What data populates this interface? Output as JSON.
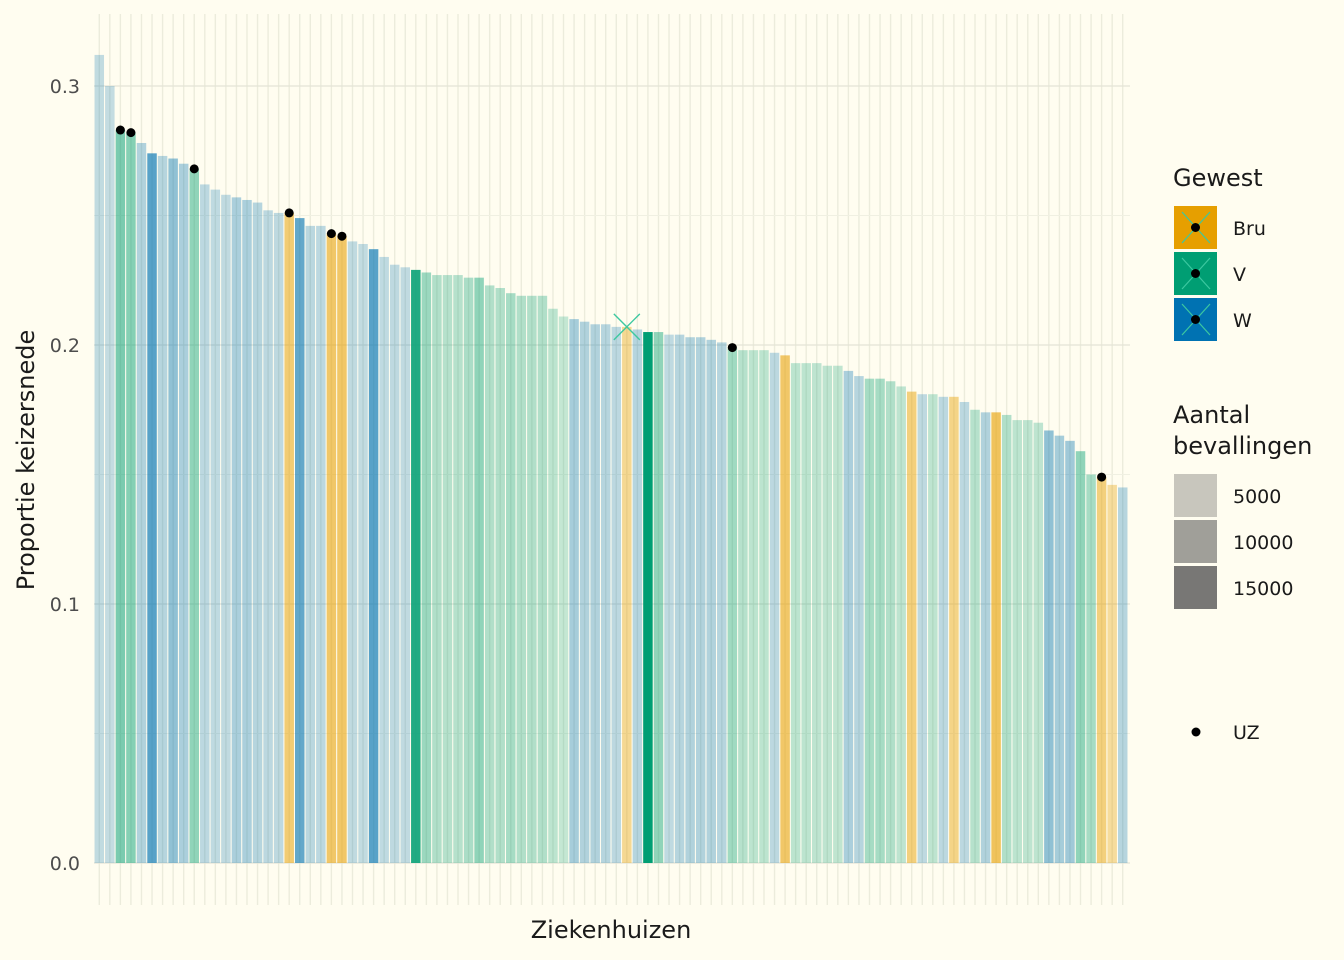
{
  "chart_data": {
    "type": "bar",
    "xlabel": "Ziekenhuizen",
    "ylabel": "Proportie keizersnede",
    "ylim": [
      0,
      0.32
    ],
    "yticks": [
      "0.0",
      "0.1",
      "0.2",
      "0.3"
    ],
    "ytick_values": [
      0,
      0.1,
      0.2,
      0.3
    ],
    "grid": true,
    "colors": {
      "Bru": "#E69F00",
      "V": "#009E73",
      "W": "#0072B2"
    },
    "legend": {
      "position": "right",
      "region": {
        "title": "Gewest",
        "items": [
          {
            "key": "Bru",
            "label": "Bru",
            "color": "#E69F00"
          },
          {
            "key": "V",
            "label": "V",
            "color": "#009E73"
          },
          {
            "key": "W",
            "label": "W",
            "color": "#0072B2"
          }
        ]
      },
      "size": {
        "title_line1": "Aantal",
        "title_line2": "bevallingen",
        "items": [
          {
            "label": "5000",
            "value": 5000
          },
          {
            "label": "10000",
            "value": 10000
          },
          {
            "label": "15000",
            "value": 15000
          }
        ]
      },
      "uz": {
        "label": "UZ"
      }
    },
    "highlight_index": 50,
    "hospitals": [
      {
        "value": 0.312,
        "region": "W",
        "births": 500,
        "uz": false
      },
      {
        "value": 0.3,
        "region": "W",
        "births": 300,
        "uz": false
      },
      {
        "value": 0.283,
        "region": "V",
        "births": 7000,
        "uz": true
      },
      {
        "value": 0.282,
        "region": "V",
        "births": 6000,
        "uz": true
      },
      {
        "value": 0.278,
        "region": "W",
        "births": 2000,
        "uz": false
      },
      {
        "value": 0.274,
        "region": "W",
        "births": 10000,
        "uz": false
      },
      {
        "value": 0.273,
        "region": "W",
        "births": 1500,
        "uz": false
      },
      {
        "value": 0.272,
        "region": "W",
        "births": 5000,
        "uz": false
      },
      {
        "value": 0.27,
        "region": "W",
        "births": 2500,
        "uz": false
      },
      {
        "value": 0.268,
        "region": "V",
        "births": 5000,
        "uz": true
      },
      {
        "value": 0.262,
        "region": "W",
        "births": 1000,
        "uz": false
      },
      {
        "value": 0.26,
        "region": "W",
        "births": 700,
        "uz": false
      },
      {
        "value": 0.258,
        "region": "W",
        "births": 600,
        "uz": false
      },
      {
        "value": 0.257,
        "region": "W",
        "births": 2500,
        "uz": false
      },
      {
        "value": 0.256,
        "region": "W",
        "births": 2500,
        "uz": false
      },
      {
        "value": 0.255,
        "region": "W",
        "births": 1500,
        "uz": false
      },
      {
        "value": 0.252,
        "region": "W",
        "births": 1000,
        "uz": false
      },
      {
        "value": 0.251,
        "region": "W",
        "births": 800,
        "uz": false
      },
      {
        "value": 0.251,
        "region": "Bru",
        "births": 7000,
        "uz": true
      },
      {
        "value": 0.249,
        "region": "W",
        "births": 9000,
        "uz": false
      },
      {
        "value": 0.246,
        "region": "W",
        "births": 1200,
        "uz": false
      },
      {
        "value": 0.246,
        "region": "W",
        "births": 1000,
        "uz": false
      },
      {
        "value": 0.243,
        "region": "Bru",
        "births": 8000,
        "uz": true
      },
      {
        "value": 0.242,
        "region": "Bru",
        "births": 8000,
        "uz": true
      },
      {
        "value": 0.24,
        "region": "W",
        "births": 600,
        "uz": false
      },
      {
        "value": 0.239,
        "region": "W",
        "births": 500,
        "uz": false
      },
      {
        "value": 0.237,
        "region": "W",
        "births": 10000,
        "uz": false
      },
      {
        "value": 0.234,
        "region": "W",
        "births": 700,
        "uz": false
      },
      {
        "value": 0.231,
        "region": "W",
        "births": 800,
        "uz": false
      },
      {
        "value": 0.23,
        "region": "W",
        "births": 600,
        "uz": false
      },
      {
        "value": 0.229,
        "region": "V",
        "births": 15000,
        "uz": false
      },
      {
        "value": 0.228,
        "region": "V",
        "births": 4000,
        "uz": false
      },
      {
        "value": 0.227,
        "region": "V",
        "births": 2000,
        "uz": false
      },
      {
        "value": 0.227,
        "region": "V",
        "births": 1500,
        "uz": false
      },
      {
        "value": 0.227,
        "region": "V",
        "births": 1500,
        "uz": false
      },
      {
        "value": 0.226,
        "region": "V",
        "births": 2500,
        "uz": false
      },
      {
        "value": 0.226,
        "region": "V",
        "births": 5000,
        "uz": false
      },
      {
        "value": 0.223,
        "region": "V",
        "births": 2000,
        "uz": false
      },
      {
        "value": 0.222,
        "region": "V",
        "births": 2000,
        "uz": false
      },
      {
        "value": 0.22,
        "region": "V",
        "births": 3000,
        "uz": false
      },
      {
        "value": 0.219,
        "region": "V",
        "births": 2000,
        "uz": false
      },
      {
        "value": 0.219,
        "region": "V",
        "births": 2000,
        "uz": false
      },
      {
        "value": 0.219,
        "region": "V",
        "births": 2000,
        "uz": false
      },
      {
        "value": 0.214,
        "region": "V",
        "births": 1000,
        "uz": false
      },
      {
        "value": 0.211,
        "region": "V",
        "births": 300,
        "uz": false
      },
      {
        "value": 0.21,
        "region": "W",
        "births": 3000,
        "uz": false
      },
      {
        "value": 0.209,
        "region": "W",
        "births": 2000,
        "uz": false
      },
      {
        "value": 0.208,
        "region": "W",
        "births": 2000,
        "uz": false
      },
      {
        "value": 0.208,
        "region": "W",
        "births": 1500,
        "uz": false
      },
      {
        "value": 0.207,
        "region": "W",
        "births": 1000,
        "uz": false
      },
      {
        "value": 0.207,
        "region": "Bru",
        "births": 4000,
        "uz": false
      },
      {
        "value": 0.206,
        "region": "W",
        "births": 1500,
        "uz": false
      },
      {
        "value": 0.205,
        "region": "V",
        "births": 18000,
        "uz": false
      },
      {
        "value": 0.205,
        "region": "V",
        "births": 5000,
        "uz": false
      },
      {
        "value": 0.204,
        "region": "W",
        "births": 700,
        "uz": false
      },
      {
        "value": 0.204,
        "region": "W",
        "births": 1500,
        "uz": false
      },
      {
        "value": 0.203,
        "region": "W",
        "births": 2000,
        "uz": false
      },
      {
        "value": 0.203,
        "region": "W",
        "births": 2000,
        "uz": false
      },
      {
        "value": 0.202,
        "region": "W",
        "births": 2000,
        "uz": false
      },
      {
        "value": 0.201,
        "region": "W",
        "births": 1500,
        "uz": false
      },
      {
        "value": 0.199,
        "region": "V",
        "births": 3500,
        "uz": true
      },
      {
        "value": 0.198,
        "region": "V",
        "births": 1500,
        "uz": false
      },
      {
        "value": 0.198,
        "region": "V",
        "births": 1000,
        "uz": false
      },
      {
        "value": 0.198,
        "region": "V",
        "births": 1000,
        "uz": false
      },
      {
        "value": 0.197,
        "region": "W",
        "births": 1000,
        "uz": false
      },
      {
        "value": 0.196,
        "region": "Bru",
        "births": 8000,
        "uz": false
      },
      {
        "value": 0.193,
        "region": "V",
        "births": 1000,
        "uz": false
      },
      {
        "value": 0.193,
        "region": "V",
        "births": 1000,
        "uz": false
      },
      {
        "value": 0.193,
        "region": "V",
        "births": 800,
        "uz": false
      },
      {
        "value": 0.192,
        "region": "V",
        "births": 800,
        "uz": false
      },
      {
        "value": 0.192,
        "region": "V",
        "births": 600,
        "uz": false
      },
      {
        "value": 0.19,
        "region": "W",
        "births": 2500,
        "uz": false
      },
      {
        "value": 0.188,
        "region": "W",
        "births": 1500,
        "uz": false
      },
      {
        "value": 0.187,
        "region": "V",
        "births": 3000,
        "uz": false
      },
      {
        "value": 0.187,
        "region": "V",
        "births": 3000,
        "uz": false
      },
      {
        "value": 0.186,
        "region": "V",
        "births": 2000,
        "uz": false
      },
      {
        "value": 0.184,
        "region": "V",
        "births": 800,
        "uz": false
      },
      {
        "value": 0.182,
        "region": "Bru",
        "births": 6000,
        "uz": false
      },
      {
        "value": 0.181,
        "region": "W",
        "births": 800,
        "uz": false
      },
      {
        "value": 0.181,
        "region": "V",
        "births": 800,
        "uz": false
      },
      {
        "value": 0.18,
        "region": "W",
        "births": 1000,
        "uz": false
      },
      {
        "value": 0.18,
        "region": "Bru",
        "births": 5000,
        "uz": false
      },
      {
        "value": 0.178,
        "region": "W",
        "births": 1000,
        "uz": false
      },
      {
        "value": 0.175,
        "region": "V",
        "births": 1500,
        "uz": false
      },
      {
        "value": 0.174,
        "region": "W",
        "births": 2000,
        "uz": false
      },
      {
        "value": 0.174,
        "region": "Bru",
        "births": 9000,
        "uz": false
      },
      {
        "value": 0.173,
        "region": "V",
        "births": 2000,
        "uz": false
      },
      {
        "value": 0.171,
        "region": "V",
        "births": 1000,
        "uz": false
      },
      {
        "value": 0.171,
        "region": "V",
        "births": 800,
        "uz": false
      },
      {
        "value": 0.17,
        "region": "V",
        "births": 800,
        "uz": false
      },
      {
        "value": 0.167,
        "region": "W",
        "births": 5000,
        "uz": false
      },
      {
        "value": 0.165,
        "region": "W",
        "births": 3000,
        "uz": false
      },
      {
        "value": 0.163,
        "region": "W",
        "births": 3500,
        "uz": false
      },
      {
        "value": 0.159,
        "region": "V",
        "births": 5000,
        "uz": false
      },
      {
        "value": 0.15,
        "region": "V",
        "births": 3000,
        "uz": false
      },
      {
        "value": 0.149,
        "region": "Bru",
        "births": 6000,
        "uz": true
      },
      {
        "value": 0.146,
        "region": "Bru",
        "births": 3000,
        "uz": false
      },
      {
        "value": 0.145,
        "region": "W",
        "births": 1500,
        "uz": false
      }
    ]
  }
}
